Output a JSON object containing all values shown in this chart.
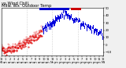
{
  "bg_color": "#f0f0f0",
  "plot_bg": "#ffffff",
  "grid_color": "#aaaaaa",
  "bar_color": "#0000dd",
  "dot_color": "#dd0000",
  "legend_blue_color": "#0000cc",
  "legend_red_color": "#cc0000",
  "ylim": [
    -15,
    50
  ],
  "xlim": [
    0,
    1440
  ],
  "n_points": 1440,
  "title_fontsize": 3.8,
  "tick_fontsize": 2.8,
  "dot_switch_minute": 580,
  "temp_shape": {
    "flat_start": -3,
    "flat_end_minute": 300,
    "peak_minute": 870,
    "peak_val": 45,
    "end_val": 15,
    "noise_scale": 2.0
  }
}
